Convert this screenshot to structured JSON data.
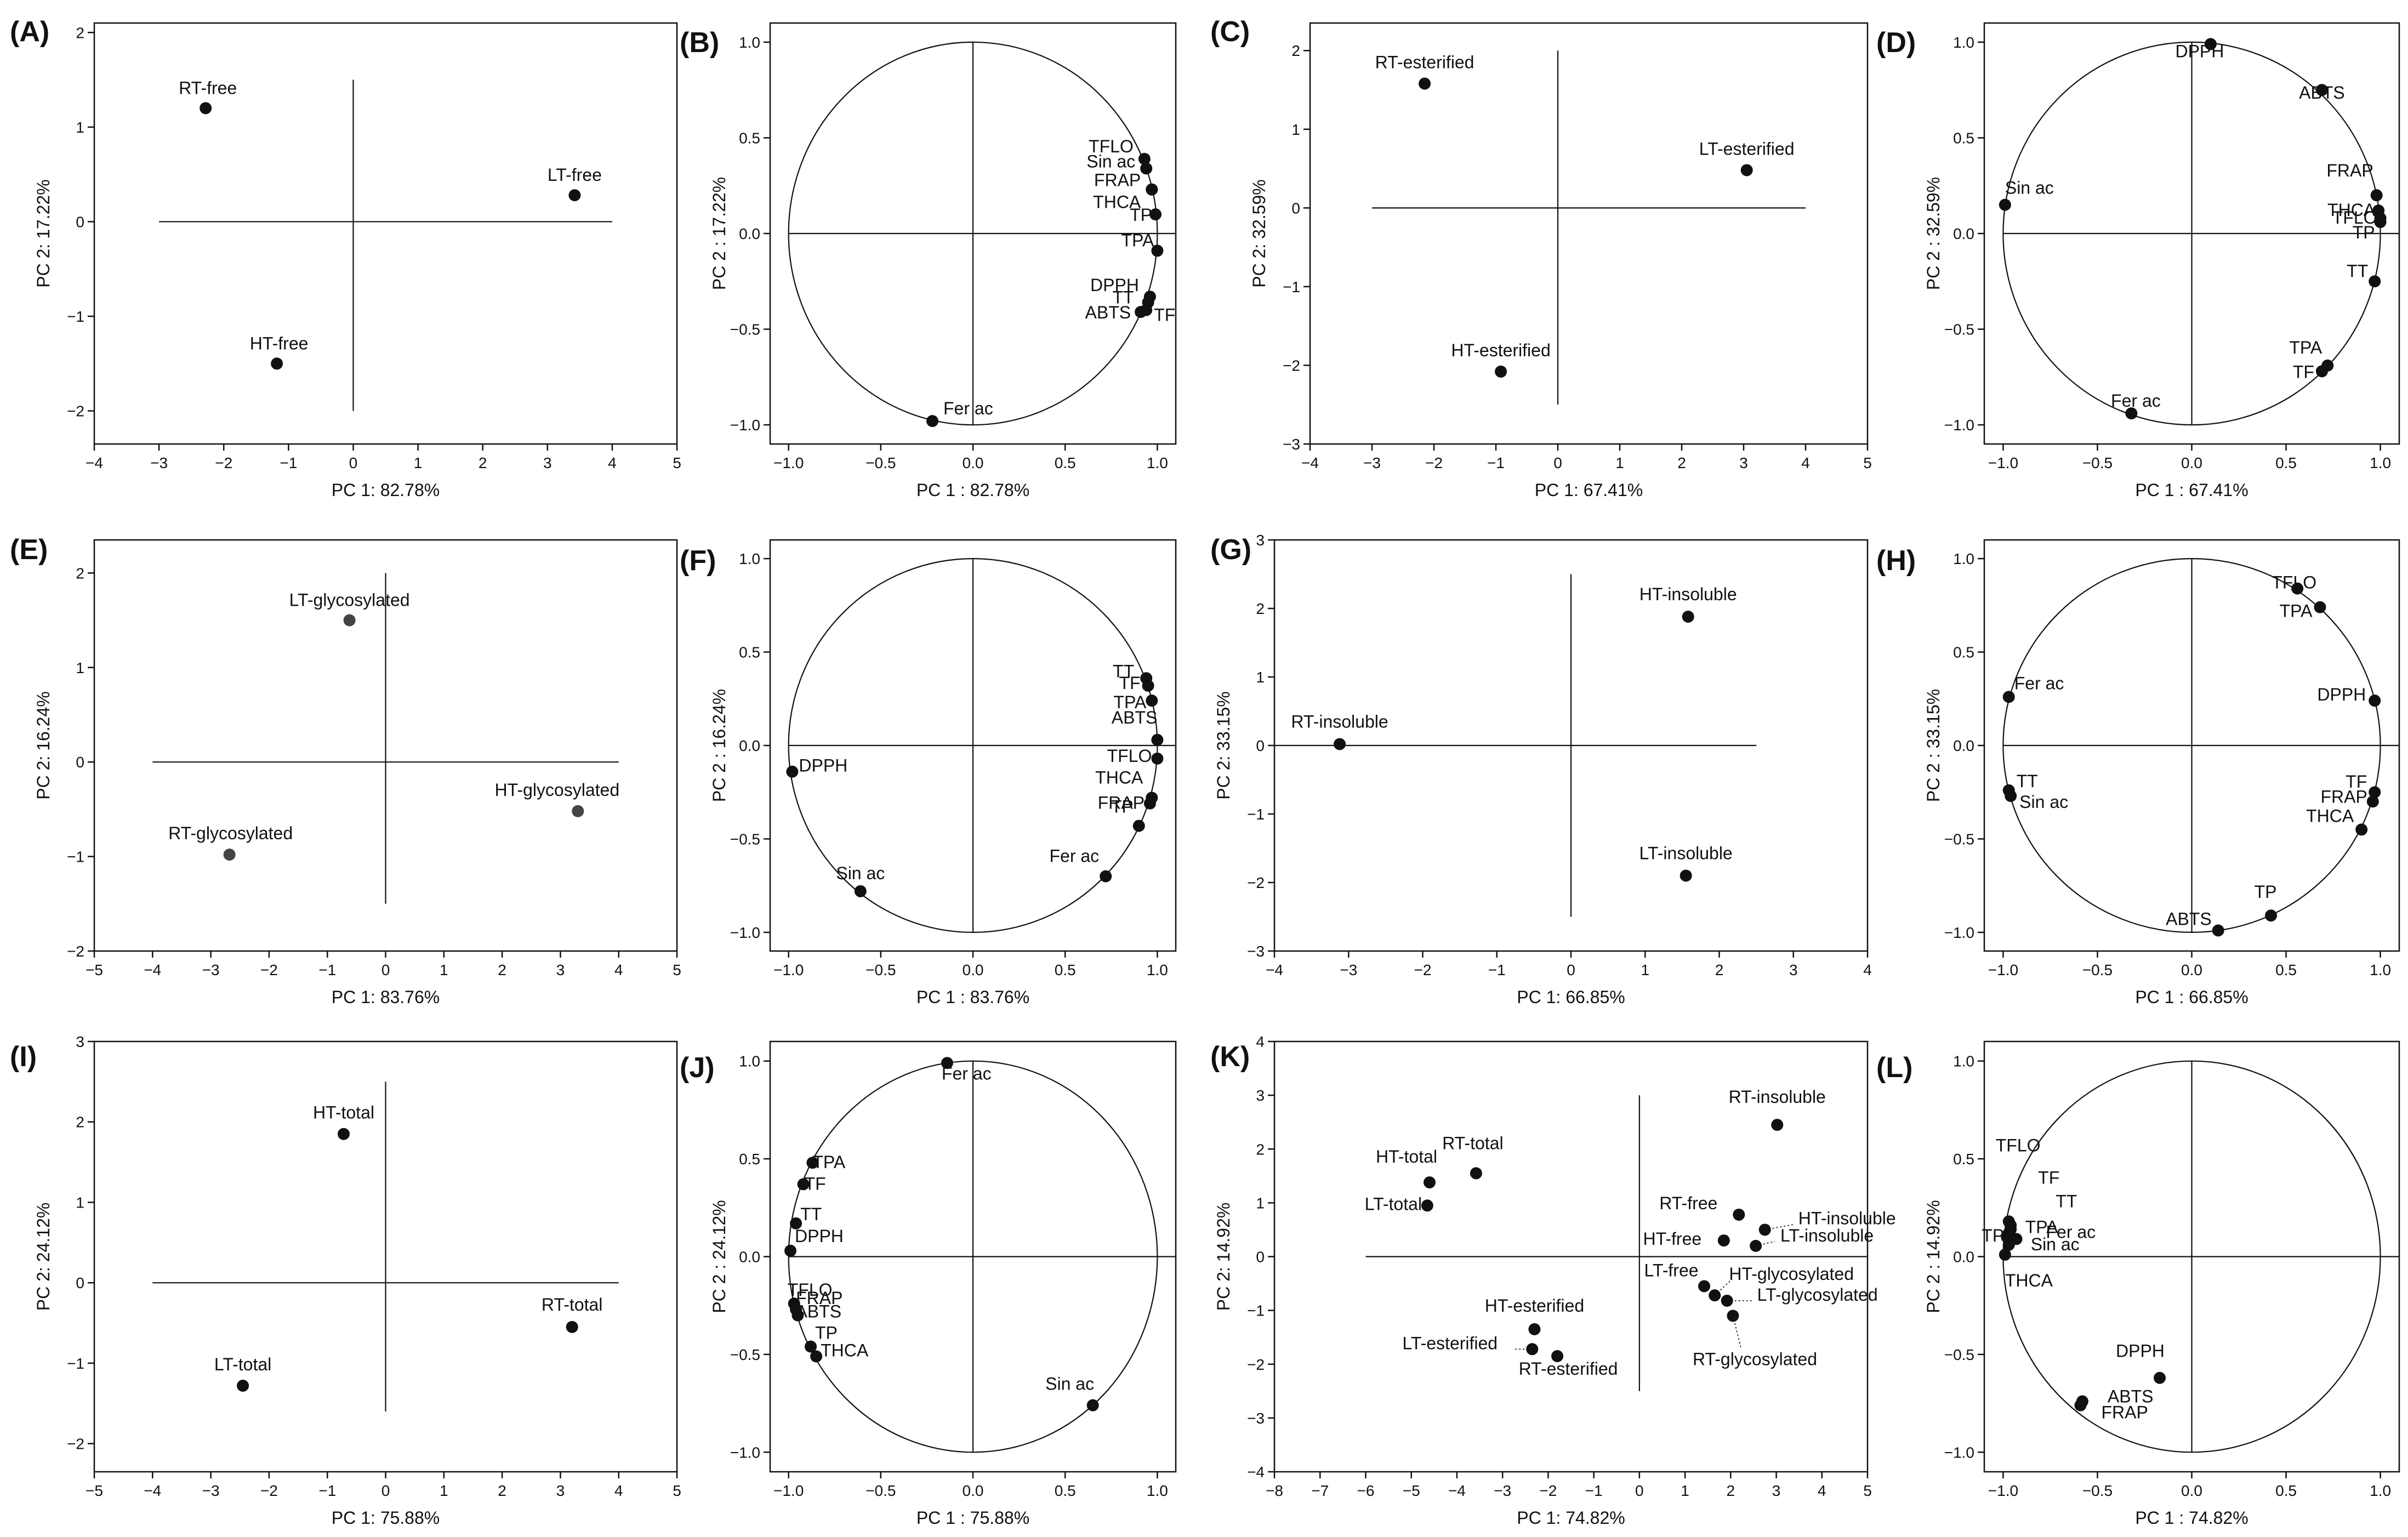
{
  "figure": {
    "colors": {
      "axes": "#111111",
      "points_dark": "#111111",
      "points_grey": "#444444",
      "background": "#ffffff"
    }
  },
  "chart_data": [
    {
      "id": "(A)",
      "type": "scatter",
      "xlabel": "PC 1: 82.78%",
      "ylabel": "PC 2: 17.22%",
      "xlim": [
        -4,
        5
      ],
      "ylim": [
        -2.35,
        2.1
      ],
      "xticks": [
        -4,
        -3,
        -2,
        -1,
        0,
        1,
        2,
        3,
        4,
        5
      ],
      "xtick_labels": [
        "−4",
        "−3",
        "−2",
        "−1",
        "0",
        "1",
        "2",
        "3",
        "4",
        "5"
      ],
      "yticks": [
        -2,
        -1,
        0,
        1,
        2
      ],
      "ytick_labels": [
        "−2",
        "−1",
        "0",
        "1",
        "2"
      ],
      "cross": {
        "h": [
          -3,
          4
        ],
        "v": [
          -2,
          1.5
        ]
      },
      "points": [
        {
          "label": "RT-free",
          "x": -2.28,
          "y": 1.2
        },
        {
          "label": "LT-free",
          "x": 3.42,
          "y": 0.28
        },
        {
          "label": "HT-free",
          "x": -1.18,
          "y": -1.5
        }
      ]
    },
    {
      "id": "(B)",
      "type": "scatter",
      "circle": true,
      "xlabel": "PC 1 : 82.78%",
      "ylabel": "PC 2 : 17.22%",
      "xlim": [
        -1.1,
        1.1
      ],
      "ylim": [
        -1.1,
        1.1
      ],
      "xticks": [
        -1,
        -0.5,
        0,
        0.5,
        1
      ],
      "xtick_labels": [
        "−1.0",
        "−0.5",
        "0.0",
        "0.5",
        "1.0"
      ],
      "yticks": [
        -1,
        -0.5,
        0,
        0.5,
        1
      ],
      "ytick_labels": [
        "−1.0",
        "−0.5",
        "0.0",
        "0.5",
        "1.0"
      ],
      "points": [
        {
          "label": "TFLO",
          "x": 0.93,
          "y": 0.39
        },
        {
          "label": "Sin ac",
          "x": 0.94,
          "y": 0.34
        },
        {
          "label": "FRAP",
          "x": 0.97,
          "y": 0.23
        },
        {
          "label": "THCA",
          "x": 0.97,
          "y": 0.23
        },
        {
          "label": "TP",
          "x": 0.99,
          "y": 0.1
        },
        {
          "label": "TPA",
          "x": 1.0,
          "y": -0.09
        },
        {
          "label": "DPPH",
          "x": 0.96,
          "y": -0.33
        },
        {
          "label": "TT",
          "x": 0.95,
          "y": -0.36
        },
        {
          "label": "ABTS",
          "x": 0.91,
          "y": -0.41
        },
        {
          "label": "TF",
          "x": 0.94,
          "y": -0.4
        },
        {
          "label": "Fer ac",
          "x": -0.22,
          "y": -0.98
        }
      ]
    },
    {
      "id": "(C)",
      "type": "scatter",
      "xlabel": "PC 1: 67.41%",
      "ylabel": "PC 2: 32.59%",
      "xlim": [
        -4,
        5
      ],
      "ylim": [
        -3,
        2.35
      ],
      "xticks": [
        -4,
        -3,
        -2,
        -1,
        0,
        1,
        2,
        3,
        4,
        5
      ],
      "xtick_labels": [
        "−4",
        "−3",
        "−2",
        "−1",
        "0",
        "1",
        "2",
        "3",
        "4",
        "5"
      ],
      "yticks": [
        -3,
        -2,
        -1,
        0,
        1,
        2
      ],
      "ytick_labels": [
        "−3",
        "−2",
        "−1",
        "0",
        "1",
        "2"
      ],
      "cross": {
        "h": [
          -3,
          4
        ],
        "v": [
          -2.5,
          2
        ]
      },
      "points": [
        {
          "label": "RT-esterified",
          "x": -2.15,
          "y": 1.58
        },
        {
          "label": "LT-esterified",
          "x": 3.05,
          "y": 0.48
        },
        {
          "label": "HT-esterified",
          "x": -0.92,
          "y": -2.08
        }
      ]
    },
    {
      "id": "(D)",
      "type": "scatter",
      "circle": true,
      "xlabel": "PC 1 : 67.41%",
      "ylabel": "PC 2 : 32.59%",
      "xlim": [
        -1.1,
        1.1
      ],
      "ylim": [
        -1.1,
        1.1
      ],
      "xticks": [
        -1,
        -0.5,
        0,
        0.5,
        1
      ],
      "xtick_labels": [
        "−1.0",
        "−0.5",
        "0.0",
        "0.5",
        "1.0"
      ],
      "yticks": [
        -1,
        -0.5,
        0,
        0.5,
        1
      ],
      "ytick_labels": [
        "−1.0",
        "−0.5",
        "0.0",
        "0.5",
        "1.0"
      ],
      "points": [
        {
          "label": "DPPH",
          "x": 0.1,
          "y": 0.99
        },
        {
          "label": "ABTS",
          "x": 0.69,
          "y": 0.75
        },
        {
          "label": "FRAP",
          "x": 0.98,
          "y": 0.2
        },
        {
          "label": "THCA",
          "x": 0.99,
          "y": 0.12
        },
        {
          "label": "TFLO",
          "x": 1.0,
          "y": 0.08
        },
        {
          "label": "TP",
          "x": 1.0,
          "y": 0.06
        },
        {
          "label": "TT",
          "x": 0.97,
          "y": -0.25
        },
        {
          "label": "TPA",
          "x": 0.72,
          "y": -0.69
        },
        {
          "label": "TF",
          "x": 0.69,
          "y": -0.72
        },
        {
          "label": "Sin ac",
          "x": -0.99,
          "y": 0.15
        },
        {
          "label": "Fer ac",
          "x": -0.32,
          "y": -0.94
        }
      ]
    },
    {
      "id": "(E)",
      "type": "scatter",
      "xlabel": "PC 1: 83.76%",
      "ylabel": "PC 2: 16.24%",
      "xlim": [
        -5,
        5
      ],
      "ylim": [
        -2,
        2.35
      ],
      "xticks": [
        -5,
        -4,
        -3,
        -2,
        -1,
        0,
        1,
        2,
        3,
        4,
        5
      ],
      "xtick_labels": [
        "−5",
        "−4",
        "−3",
        "−2",
        "−1",
        "0",
        "1",
        "2",
        "3",
        "4",
        "5"
      ],
      "yticks": [
        -2,
        -1,
        0,
        1,
        2
      ],
      "ytick_labels": [
        "−2",
        "−1",
        "0",
        "1",
        "2"
      ],
      "cross": {
        "h": [
          -4,
          4
        ],
        "v": [
          -1.5,
          2
        ]
      },
      "points": [
        {
          "label": "LT-glycosylated",
          "x": -0.62,
          "y": 1.5
        },
        {
          "label": "HT-glycosylated",
          "x": 3.3,
          "y": -0.52
        },
        {
          "label": "RT-glycosylated",
          "x": -2.68,
          "y": -0.98
        }
      ]
    },
    {
      "id": "(F)",
      "type": "scatter",
      "circle": true,
      "xlabel": "PC 1 : 83.76%",
      "ylabel": "PC 2 : 16.24%",
      "xlim": [
        -1.1,
        1.1
      ],
      "ylim": [
        -1.1,
        1.1
      ],
      "xticks": [
        -1,
        -0.5,
        0,
        0.5,
        1
      ],
      "xtick_labels": [
        "−1.0",
        "−0.5",
        "0.0",
        "0.5",
        "1.0"
      ],
      "yticks": [
        -1,
        -0.5,
        0,
        0.5,
        1
      ],
      "ytick_labels": [
        "−1.0",
        "−0.5",
        "0.0",
        "0.5",
        "1.0"
      ],
      "points": [
        {
          "label": "TT",
          "x": 0.94,
          "y": 0.36
        },
        {
          "label": "TF",
          "x": 0.95,
          "y": 0.32
        },
        {
          "label": "TPA",
          "x": 0.97,
          "y": 0.24
        },
        {
          "label": "ABTS",
          "x": 1.0,
          "y": 0.03
        },
        {
          "label": "TFLO",
          "x": 1.0,
          "y": -0.07
        },
        {
          "label": "THCA",
          "x": 0.97,
          "y": -0.28
        },
        {
          "label": "FRAP",
          "x": 0.96,
          "y": -0.31
        },
        {
          "label": "TP",
          "x": 0.9,
          "y": -0.43
        },
        {
          "label": "DPPH",
          "x": -0.98,
          "y": -0.14
        },
        {
          "label": "Sin ac",
          "x": -0.61,
          "y": -0.78
        },
        {
          "label": "Fer ac",
          "x": 0.72,
          "y": -0.7
        }
      ]
    },
    {
      "id": "(G)",
      "type": "scatter",
      "xlabel": "PC 1: 66.85%",
      "ylabel": "PC 2: 33.15%",
      "xlim": [
        -4,
        4
      ],
      "ylim": [
        -3,
        3
      ],
      "xticks": [
        -4,
        -3,
        -2,
        -1,
        0,
        1,
        2,
        3,
        4
      ],
      "xtick_labels": [
        "−4",
        "−3",
        "−2",
        "−1",
        "0",
        "1",
        "2",
        "3",
        "4"
      ],
      "yticks": [
        -3,
        -2,
        -1,
        0,
        1,
        2,
        3
      ],
      "ytick_labels": [
        "−3",
        "−2",
        "−1",
        "0",
        "1",
        "2",
        "3"
      ],
      "cross": {
        "h": [
          -4,
          2.5
        ],
        "v": [
          -2.5,
          2.5
        ]
      },
      "points": [
        {
          "label": "HT-insoluble",
          "x": 1.58,
          "y": 1.88
        },
        {
          "label": "RT-insoluble",
          "x": -3.12,
          "y": 0.02
        },
        {
          "label": "LT-insoluble",
          "x": 1.55,
          "y": -1.9
        }
      ]
    },
    {
      "id": "(H)",
      "type": "scatter",
      "circle": true,
      "xlabel": "PC 1 : 66.85%",
      "ylabel": "PC 2 : 33.15%",
      "xlim": [
        -1.1,
        1.1
      ],
      "ylim": [
        -1.1,
        1.1
      ],
      "xticks": [
        -1,
        -0.5,
        0,
        0.5,
        1
      ],
      "xtick_labels": [
        "−1.0",
        "−0.5",
        "0.0",
        "0.5",
        "1.0"
      ],
      "yticks": [
        -1,
        -0.5,
        0,
        0.5,
        1
      ],
      "ytick_labels": [
        "−1.0",
        "−0.5",
        "0.0",
        "0.5",
        "1.0"
      ],
      "points": [
        {
          "label": "TFLO",
          "x": 0.56,
          "y": 0.84
        },
        {
          "label": "TPA",
          "x": 0.68,
          "y": 0.74
        },
        {
          "label": "DPPH",
          "x": 0.97,
          "y": 0.24
        },
        {
          "label": "TF",
          "x": 0.97,
          "y": -0.25
        },
        {
          "label": "FRAP",
          "x": 0.96,
          "y": -0.3
        },
        {
          "label": "THCA",
          "x": 0.9,
          "y": -0.45
        },
        {
          "label": "TP",
          "x": 0.42,
          "y": -0.91
        },
        {
          "label": "ABTS",
          "x": 0.14,
          "y": -0.99
        },
        {
          "label": "Fer ac",
          "x": -0.97,
          "y": 0.26
        },
        {
          "label": "TT",
          "x": -0.97,
          "y": -0.24
        },
        {
          "label": "Sin ac",
          "x": -0.96,
          "y": -0.27
        }
      ]
    },
    {
      "id": "(I)",
      "type": "scatter",
      "xlabel": "PC 1: 75.88%",
      "ylabel": "PC 2: 24.12%",
      "xlim": [
        -5,
        5
      ],
      "ylim": [
        -2.35,
        3
      ],
      "xticks": [
        -5,
        -4,
        -3,
        -2,
        -1,
        0,
        1,
        2,
        3,
        4,
        5
      ],
      "xtick_labels": [
        "−5",
        "−4",
        "−3",
        "−2",
        "−1",
        "0",
        "1",
        "2",
        "3",
        "4",
        "5"
      ],
      "yticks": [
        -2,
        -1,
        0,
        1,
        2,
        3
      ],
      "ytick_labels": [
        "−2",
        "−1",
        "0",
        "1",
        "2",
        "3"
      ],
      "cross": {
        "h": [
          -4,
          4
        ],
        "v": [
          -1.6,
          2.5
        ]
      },
      "points": [
        {
          "label": "HT-total",
          "x": -0.72,
          "y": 1.85
        },
        {
          "label": "RT-total",
          "x": 3.2,
          "y": -0.55
        },
        {
          "label": "LT-total",
          "x": -2.45,
          "y": -1.28
        }
      ]
    },
    {
      "id": "(J)",
      "type": "scatter",
      "circle": true,
      "xlabel": "PC 1 : 75.88%",
      "ylabel": "PC 2 : 24.12%",
      "xlim": [
        -1.1,
        1.1
      ],
      "ylim": [
        -1.1,
        1.1
      ],
      "xticks": [
        -1,
        -0.5,
        0,
        0.5,
        1
      ],
      "xtick_labels": [
        "−1.0",
        "−0.5",
        "0.0",
        "0.5",
        "1.0"
      ],
      "yticks": [
        -1,
        -0.5,
        0,
        0.5,
        1
      ],
      "ytick_labels": [
        "−1.0",
        "−0.5",
        "0.0",
        "0.5",
        "1.0"
      ],
      "points": [
        {
          "label": "Fer ac",
          "x": -0.14,
          "y": 0.99
        },
        {
          "label": "TPA",
          "x": -0.87,
          "y": 0.48
        },
        {
          "label": "TF",
          "x": -0.92,
          "y": 0.37
        },
        {
          "label": "TT",
          "x": -0.96,
          "y": 0.17
        },
        {
          "label": "DPPH",
          "x": -0.99,
          "y": 0.03
        },
        {
          "label": "TFLO",
          "x": -0.97,
          "y": -0.24
        },
        {
          "label": "FRAP",
          "x": -0.96,
          "y": -0.27
        },
        {
          "label": "ABTS",
          "x": -0.95,
          "y": -0.3
        },
        {
          "label": "TP",
          "x": -0.88,
          "y": -0.46
        },
        {
          "label": "THCA",
          "x": -0.85,
          "y": -0.51
        },
        {
          "label": "Sin ac",
          "x": 0.65,
          "y": -0.76
        }
      ]
    },
    {
      "id": "(K)",
      "type": "scatter",
      "xlabel": "PC 1: 74.82%",
      "ylabel": "PC 2: 14.92%",
      "xlim": [
        -8,
        5
      ],
      "ylim": [
        -4,
        4
      ],
      "xticks": [
        -8,
        -7,
        -6,
        -5,
        -4,
        -3,
        -2,
        -1,
        0,
        1,
        2,
        3,
        4,
        5
      ],
      "xtick_labels": [
        "−8",
        "−7",
        "−6",
        "−5",
        "−4",
        "−3",
        "−2",
        "−1",
        "0",
        "1",
        "2",
        "3",
        "4",
        "5"
      ],
      "yticks": [
        -4,
        -3,
        -2,
        -1,
        0,
        1,
        2,
        3,
        4
      ],
      "ytick_labels": [
        "−4",
        "−3",
        "−2",
        "−1",
        "0",
        "1",
        "2",
        "3",
        "4"
      ],
      "cross": {
        "h": [
          -6,
          5
        ],
        "v": [
          -2.5,
          3
        ]
      },
      "points": [
        {
          "label": "RT-insoluble",
          "x": 3.02,
          "y": 2.45
        },
        {
          "label": "HT-total",
          "x": -4.6,
          "y": 1.38
        },
        {
          "label": "RT-total",
          "x": -3.58,
          "y": 1.55
        },
        {
          "label": "LT-total",
          "x": -4.65,
          "y": 0.95
        },
        {
          "label": "RT-free",
          "x": 2.18,
          "y": 0.78
        },
        {
          "label": "HT-insoluble",
          "x": 2.75,
          "y": 0.5
        },
        {
          "label": "HT-free",
          "x": 1.85,
          "y": 0.3
        },
        {
          "label": "LT-insoluble",
          "x": 2.55,
          "y": 0.2
        },
        {
          "label": "LT-free",
          "x": 1.42,
          "y": -0.55
        },
        {
          "label": "HT-glycosylated",
          "x": 1.65,
          "y": -0.72
        },
        {
          "label": "LT-glycosylated",
          "x": 1.92,
          "y": -0.82
        },
        {
          "label": "RT-glycosylated",
          "x": 2.05,
          "y": -1.1
        },
        {
          "label": "HT-esterified",
          "x": -2.3,
          "y": -1.35
        },
        {
          "label": "LT-esterified",
          "x": -2.35,
          "y": -1.72
        },
        {
          "label": "RT-esterified",
          "x": -1.8,
          "y": -1.85
        }
      ]
    },
    {
      "id": "(L)",
      "type": "scatter",
      "circle": true,
      "xlabel": "PC 1 : 74.82%",
      "ylabel": "PC 2 : 14.92%",
      "xlim": [
        -1.1,
        1.1
      ],
      "ylim": [
        -1.1,
        1.1
      ],
      "xticks": [
        -1,
        -0.5,
        0,
        0.5,
        1
      ],
      "xtick_labels": [
        "−1.0",
        "−0.5",
        "0.0",
        "0.5",
        "1.0"
      ],
      "yticks": [
        -1,
        -0.5,
        0,
        0.5,
        1
      ],
      "ytick_labels": [
        "−1.0",
        "−0.5",
        "0.0",
        "0.5",
        "1.0"
      ],
      "points": [
        {
          "label": "TFLO",
          "x": -0.97,
          "y": 0.18
        },
        {
          "label": "TF",
          "x": -0.96,
          "y": 0.16
        },
        {
          "label": "TT",
          "x": -0.96,
          "y": 0.14
        },
        {
          "label": "TPA",
          "x": -0.97,
          "y": 0.12
        },
        {
          "label": "TP",
          "x": -0.98,
          "y": 0.1
        },
        {
          "label": "Fer ac",
          "x": -0.93,
          "y": 0.09
        },
        {
          "label": "Sin ac",
          "x": -0.97,
          "y": 0.06
        },
        {
          "label": "THCA",
          "x": -0.99,
          "y": 0.01
        },
        {
          "label": "DPPH",
          "x": -0.17,
          "y": -0.62
        },
        {
          "label": "ABTS",
          "x": -0.58,
          "y": -0.74
        },
        {
          "label": "FRAP",
          "x": -0.59,
          "y": -0.76
        }
      ]
    }
  ]
}
